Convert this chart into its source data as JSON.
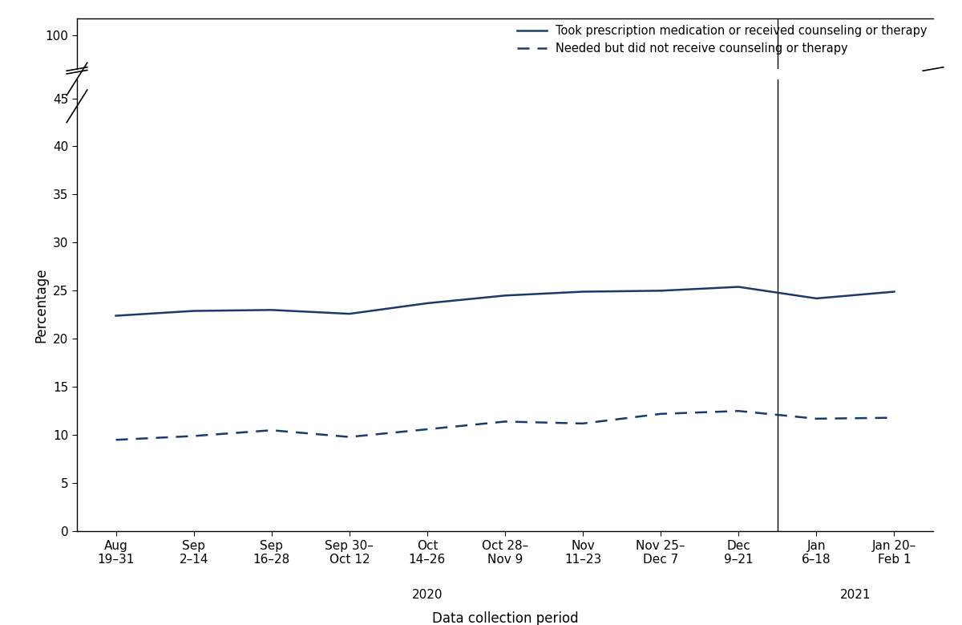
{
  "x_labels": [
    "Aug\n19–31",
    "Sep\n2–14",
    "Sep\n16–28",
    "Sep 30–\nOct 12",
    "Oct\n14–26",
    "Oct 28–\nNov 9",
    "Nov\n11–23",
    "Nov 25–\nDec 7",
    "Dec\n9–21",
    "Jan\n6–18",
    "Jan 20–\nFeb 1"
  ],
  "solid_line": [
    22.4,
    22.9,
    23.0,
    22.6,
    23.7,
    24.5,
    24.9,
    25.0,
    25.4,
    24.2,
    24.9
  ],
  "dashed_line": [
    9.5,
    9.9,
    10.5,
    9.8,
    10.6,
    11.4,
    11.2,
    12.2,
    12.5,
    11.7,
    11.8
  ],
  "line_color": "#1b3a6b",
  "ylabel": "Percentage",
  "xlabel": "Data collection period",
  "legend_solid": "Took prescription medication or received counseling or therapy",
  "legend_dashed": "Needed but did not receive counseling or therapy",
  "year_2020_label": "2020",
  "year_2021_label": "2021",
  "axis_fontsize": 12,
  "tick_fontsize": 11,
  "legend_fontsize": 10.5
}
